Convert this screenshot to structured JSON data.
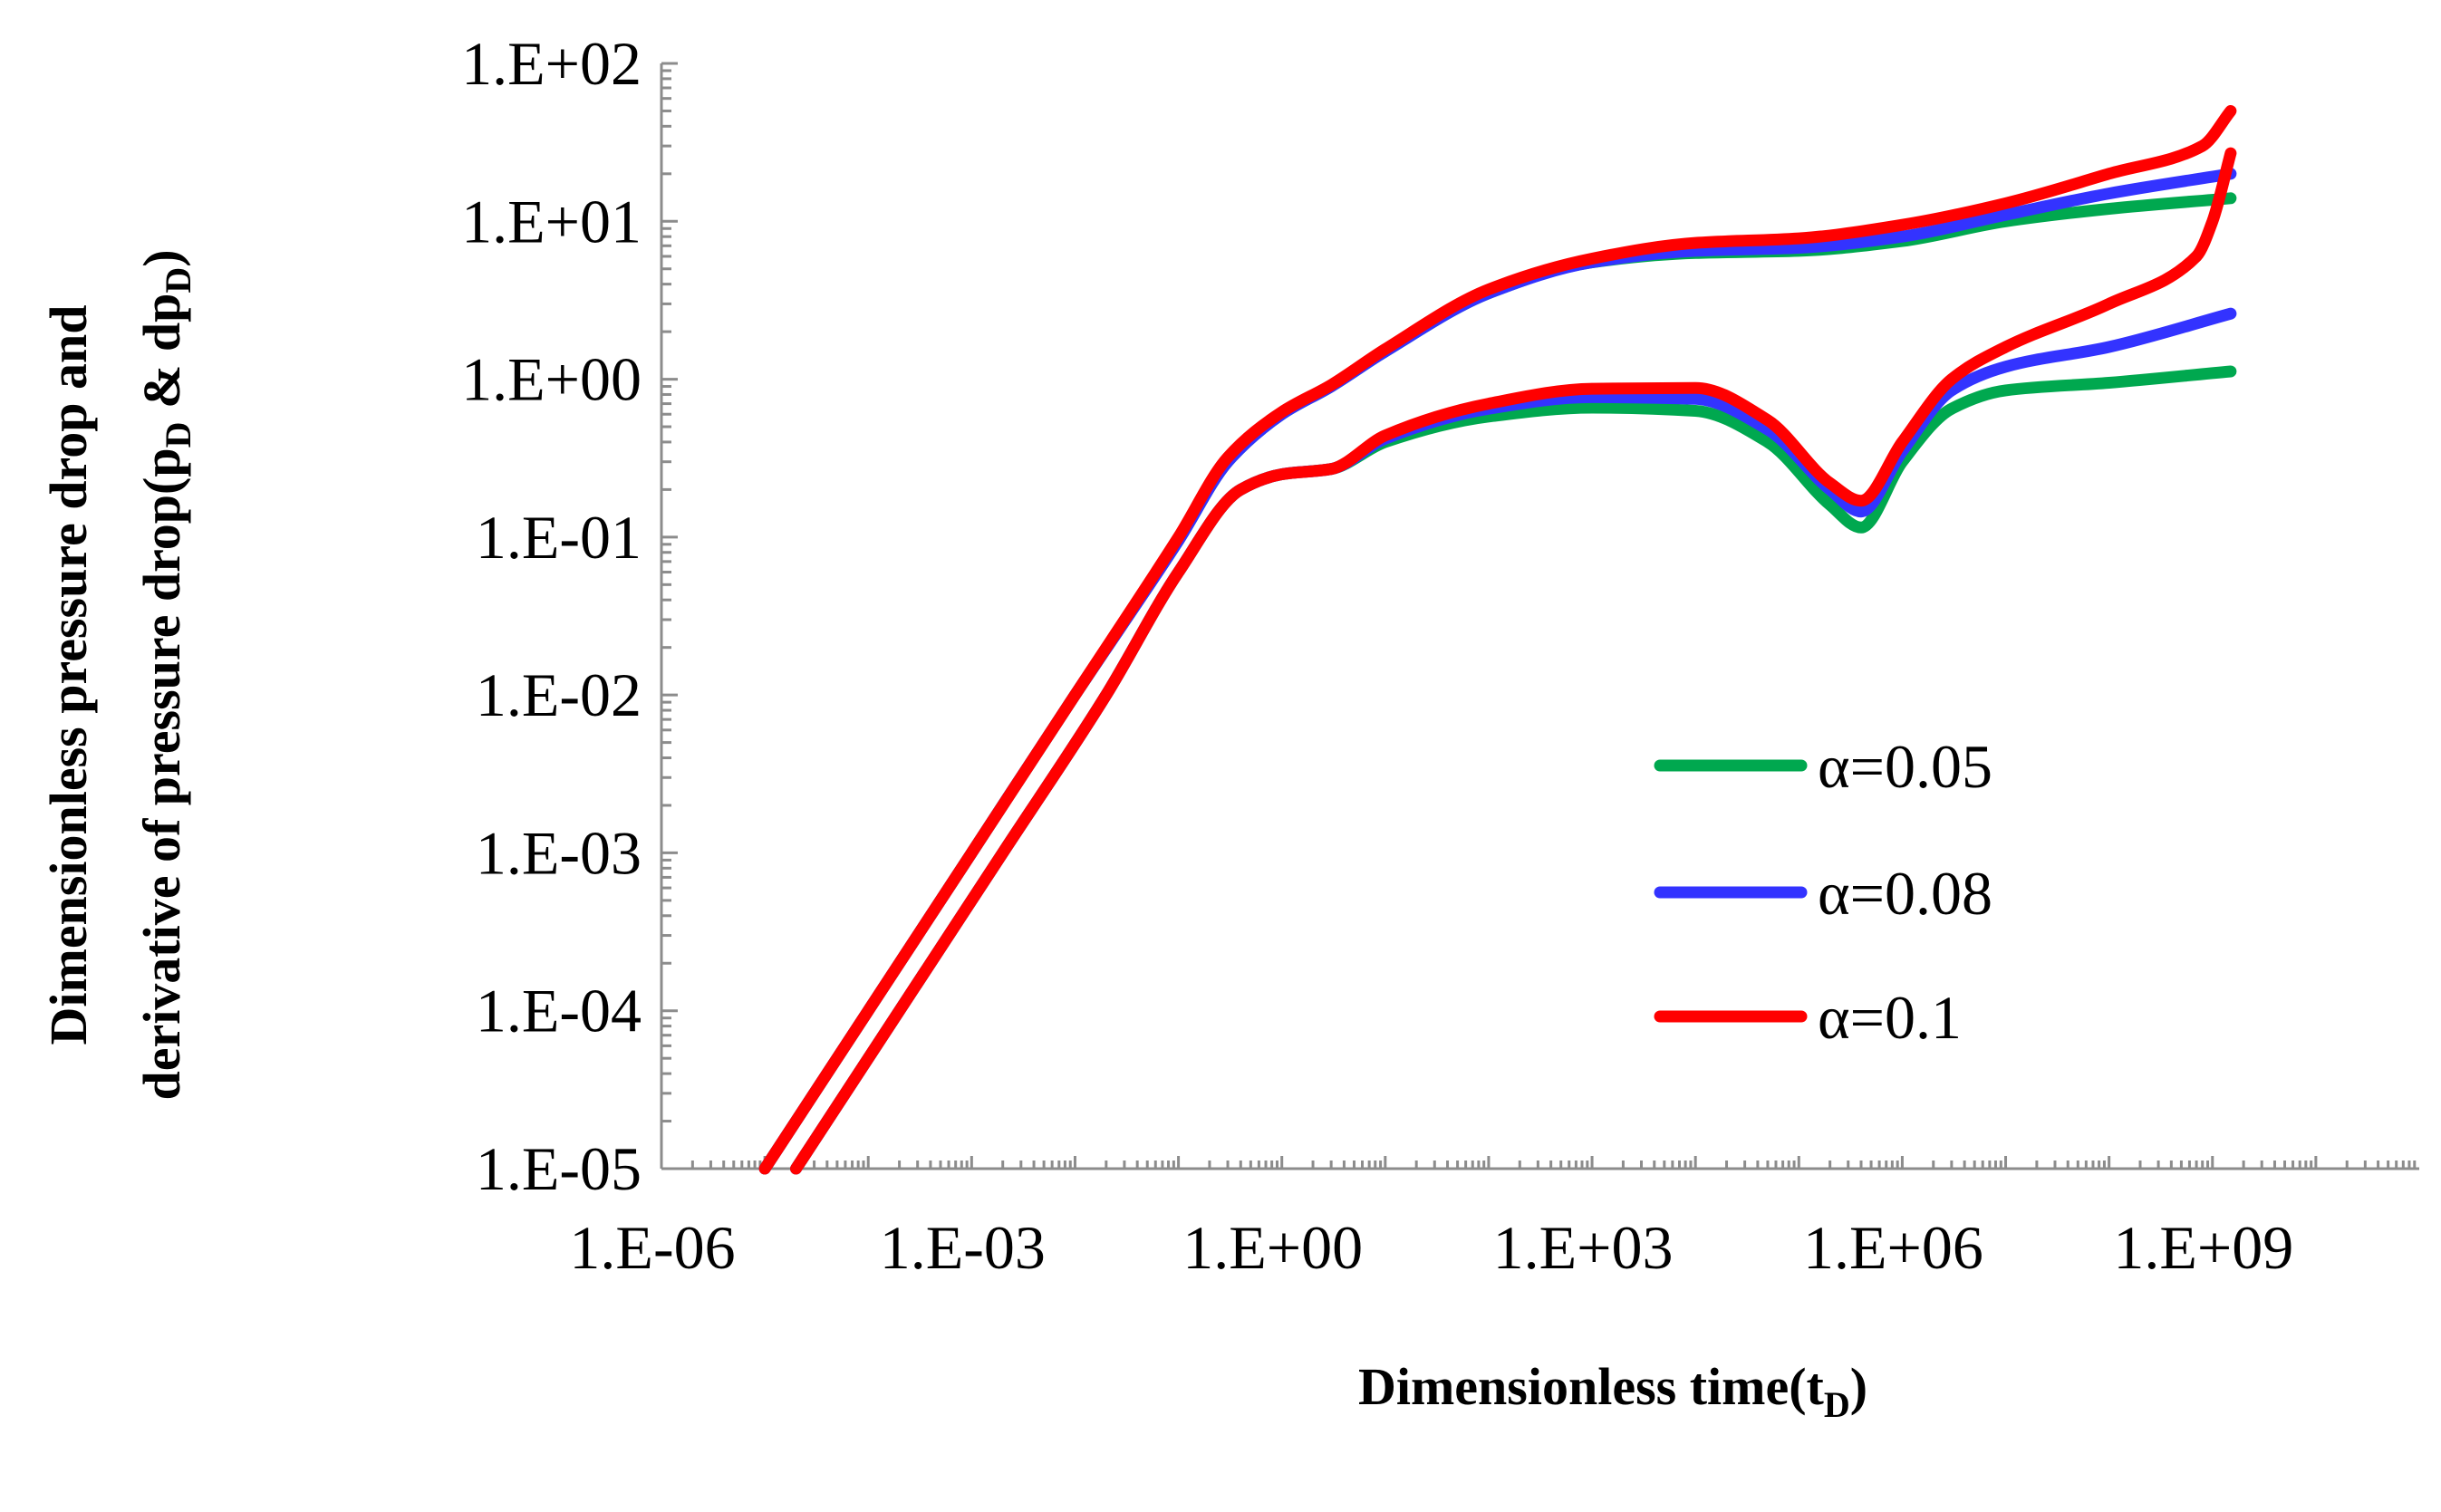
{
  "chart_data": {
    "type": "line",
    "title": "",
    "x_scale": "log",
    "y_scale": "log",
    "xlim": [
      1e-06,
      100000000000.0
    ],
    "ylim": [
      1e-05,
      100
    ],
    "xlabel": {
      "main": "Dimensionless time(t",
      "sub": "D",
      "end": ")"
    },
    "ylabel": {
      "line1": "Dimensionless pressure drop and",
      "line2_main": "derivative of pressure drop(p",
      "line2_sub1": "D",
      "line2_mid": " & dp",
      "line2_sub2": "D",
      "line2_end": ")"
    },
    "x_tick_labels": [
      {
        "value": 1e-06,
        "label": "1.E-06"
      },
      {
        "value": 0.001,
        "label": "1.E-03"
      },
      {
        "value": 1,
        "label": "1.E+00"
      },
      {
        "value": 1000.0,
        "label": "1.E+03"
      },
      {
        "value": 1000000.0,
        "label": "1.E+06"
      },
      {
        "value": 1000000000.0,
        "label": "1.E+09"
      }
    ],
    "y_tick_labels": [
      {
        "value": 1e-05,
        "label": "1.E-05"
      },
      {
        "value": 0.0001,
        "label": "1.E-04"
      },
      {
        "value": 0.001,
        "label": "1.E-03"
      },
      {
        "value": 0.01,
        "label": "1.E-02"
      },
      {
        "value": 0.1,
        "label": "1.E-01"
      },
      {
        "value": 1,
        "label": "1.E+00"
      },
      {
        "value": 10,
        "label": "1.E+01"
      },
      {
        "value": 100,
        "label": "1.E+02"
      }
    ],
    "legend_position": "right",
    "series": [
      {
        "name": "α=0.05",
        "color": "#00a84f",
        "pressure": [
          [
            1e-05,
            1e-05
          ],
          [
            0.0001,
            0.0001
          ],
          [
            0.001,
            0.001
          ],
          [
            0.01,
            0.01
          ],
          [
            0.1,
            0.095
          ],
          [
            0.3,
            0.3
          ],
          [
            1,
            0.6
          ],
          [
            3,
            0.9
          ],
          [
            10,
            1.5
          ],
          [
            100,
            3.5
          ],
          [
            1000,
            5.5
          ],
          [
            10000,
            6.3
          ],
          [
            100000,
            6.5
          ],
          [
            1000000,
            7.5
          ],
          [
            10000000,
            10
          ],
          [
            100000000,
            12
          ],
          [
            1500000000,
            14
          ]
        ],
        "derivative": [
          [
            2e-05,
            1e-05
          ],
          [
            0.0002,
            0.0001
          ],
          [
            0.002,
            0.001
          ],
          [
            0.02,
            0.01
          ],
          [
            0.1,
            0.06
          ],
          [
            0.4,
            0.2
          ],
          [
            1,
            0.25
          ],
          [
            3,
            0.27
          ],
          [
            10,
            0.4
          ],
          [
            100,
            0.58
          ],
          [
            1000,
            0.66
          ],
          [
            10000,
            0.63
          ],
          [
            50000,
            0.4
          ],
          [
            200000,
            0.16
          ],
          [
            400000,
            0.115
          ],
          [
            1000000,
            0.3
          ],
          [
            3000000,
            0.65
          ],
          [
            10000000,
            0.85
          ],
          [
            100000000,
            0.95
          ],
          [
            1500000000,
            1.12
          ]
        ]
      },
      {
        "name": "α=0.08",
        "color": "#3333ff",
        "pressure": [
          [
            1e-05,
            1e-05
          ],
          [
            0.0001,
            0.0001
          ],
          [
            0.001,
            0.001
          ],
          [
            0.01,
            0.01
          ],
          [
            0.1,
            0.095
          ],
          [
            0.3,
            0.3
          ],
          [
            1,
            0.6
          ],
          [
            3,
            0.9
          ],
          [
            10,
            1.5
          ],
          [
            100,
            3.5
          ],
          [
            1000,
            5.5
          ],
          [
            10000,
            6.5
          ],
          [
            100000,
            6.8
          ],
          [
            1000000,
            8
          ],
          [
            10000000,
            11
          ],
          [
            100000000,
            15
          ],
          [
            1500000000,
            20
          ]
        ],
        "derivative": [
          [
            2e-05,
            1e-05
          ],
          [
            0.0002,
            0.0001
          ],
          [
            0.002,
            0.001
          ],
          [
            0.02,
            0.01
          ],
          [
            0.1,
            0.06
          ],
          [
            0.4,
            0.2
          ],
          [
            1,
            0.25
          ],
          [
            3,
            0.27
          ],
          [
            10,
            0.42
          ],
          [
            100,
            0.65
          ],
          [
            1000,
            0.77
          ],
          [
            10000,
            0.75
          ],
          [
            50000,
            0.48
          ],
          [
            200000,
            0.2
          ],
          [
            400000,
            0.145
          ],
          [
            1000000,
            0.35
          ],
          [
            3000000,
            0.85
          ],
          [
            10000000,
            1.2
          ],
          [
            100000000,
            1.6
          ],
          [
            1500000000,
            2.6
          ]
        ]
      },
      {
        "name": "α=0.1",
        "color": "#ff0000",
        "pressure": [
          [
            1e-05,
            1e-05
          ],
          [
            0.0001,
            0.0001
          ],
          [
            0.001,
            0.001
          ],
          [
            0.01,
            0.01
          ],
          [
            0.1,
            0.1
          ],
          [
            0.3,
            0.32
          ],
          [
            1,
            0.62
          ],
          [
            3,
            0.92
          ],
          [
            10,
            1.55
          ],
          [
            100,
            3.7
          ],
          [
            1000,
            5.8
          ],
          [
            10000,
            7.3
          ],
          [
            100000,
            7.8
          ],
          [
            1000000,
            9.5
          ],
          [
            10000000,
            13
          ],
          [
            100000000,
            20
          ],
          [
            800000000,
            30
          ],
          [
            1500000000,
            50
          ]
        ],
        "derivative": [
          [
            2e-05,
            1e-05
          ],
          [
            0.0002,
            0.0001
          ],
          [
            0.002,
            0.001
          ],
          [
            0.02,
            0.01
          ],
          [
            0.1,
            0.06
          ],
          [
            0.4,
            0.2
          ],
          [
            1,
            0.25
          ],
          [
            3,
            0.27
          ],
          [
            10,
            0.44
          ],
          [
            100,
            0.7
          ],
          [
            1000,
            0.87
          ],
          [
            10000,
            0.88
          ],
          [
            50000,
            0.55
          ],
          [
            200000,
            0.22
          ],
          [
            400000,
            0.17
          ],
          [
            1000000,
            0.4
          ],
          [
            3000000,
            1.0
          ],
          [
            10000000,
            1.6
          ],
          [
            100000000,
            3
          ],
          [
            700000000,
            6
          ],
          [
            1000000000,
            10
          ],
          [
            1500000000,
            27
          ]
        ]
      }
    ]
  }
}
